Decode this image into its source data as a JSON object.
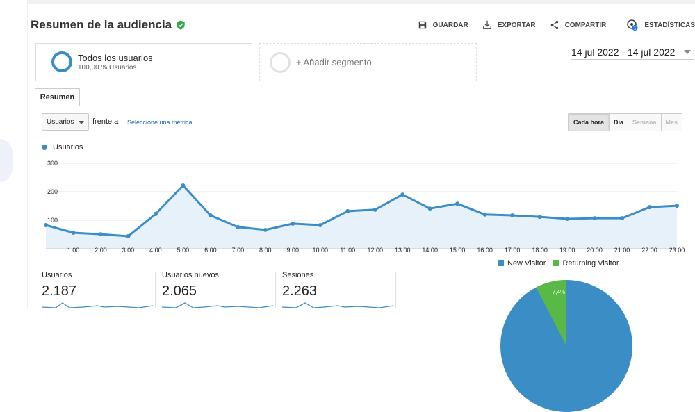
{
  "header": {
    "title": "Resumen de la audiencia",
    "actions": [
      {
        "label": "GUARDAR",
        "icon": "save-icon"
      },
      {
        "label": "EXPORTAR",
        "icon": "export-icon"
      },
      {
        "label": "COMPARTIR",
        "icon": "share-icon"
      },
      {
        "label": "ESTADÍSTICAS",
        "icon": "insights-icon",
        "badge": "1"
      }
    ]
  },
  "segments": {
    "active": {
      "title": "Todos los usuarios",
      "subtitle": "100,00 % Usuarios"
    },
    "add_label": "+ Añadir segmento"
  },
  "date_range": "14 jul 2022 - 14 jul 2022",
  "tabs": [
    {
      "label": "Resumen",
      "active": true
    }
  ],
  "controls": {
    "metric_select": "Usuarios",
    "versus_label": "frente a",
    "pick_metric_link": "Seleccione una métrica",
    "granularity": [
      {
        "label": "Cada hora",
        "active": true,
        "enabled": true
      },
      {
        "label": "Día",
        "active": false,
        "enabled": true
      },
      {
        "label": "Semana",
        "active": false,
        "enabled": false
      },
      {
        "label": "Mes",
        "active": false,
        "enabled": false
      }
    ]
  },
  "chart_data": {
    "type": "area",
    "title": "",
    "legend": [
      "Usuarios"
    ],
    "series_color": "#3a8dc5",
    "x": [
      "...",
      "1:00",
      "2:00",
      "3:00",
      "4:00",
      "5:00",
      "6:00",
      "7:00",
      "8:00",
      "9:00",
      "10:00",
      "11:00",
      "12:00",
      "13:00",
      "14:00",
      "15:00",
      "16:00",
      "17:00",
      "18:00",
      "19:00",
      "20:00",
      "21:00",
      "22:00",
      "23:00"
    ],
    "series": [
      {
        "name": "Usuarios",
        "values": [
          83,
          56,
          51,
          44,
          122,
          222,
          117,
          76,
          66,
          88,
          83,
          132,
          137,
          190,
          141,
          158,
          120,
          117,
          112,
          105,
          107,
          107,
          146,
          151
        ]
      }
    ],
    "yticks": [
      100,
      200,
      300
    ],
    "ylim": [
      0,
      300
    ],
    "grid": true,
    "xlabel": "",
    "ylabel": ""
  },
  "stats": [
    {
      "label": "Usuarios",
      "value": "2.187"
    },
    {
      "label": "Usuarios nuevos",
      "value": "2.065"
    },
    {
      "label": "Sesiones",
      "value": "2.263"
    }
  ],
  "pie": {
    "legend": [
      {
        "label": "New Visitor",
        "color": "#3a8dc5"
      },
      {
        "label": "Returning Visitor",
        "color": "#58b947"
      }
    ],
    "slices": [
      {
        "label": "New Visitor",
        "value": 92.6
      },
      {
        "label": "Returning Visitor",
        "value": 7.4,
        "display": "7,4%"
      }
    ]
  }
}
